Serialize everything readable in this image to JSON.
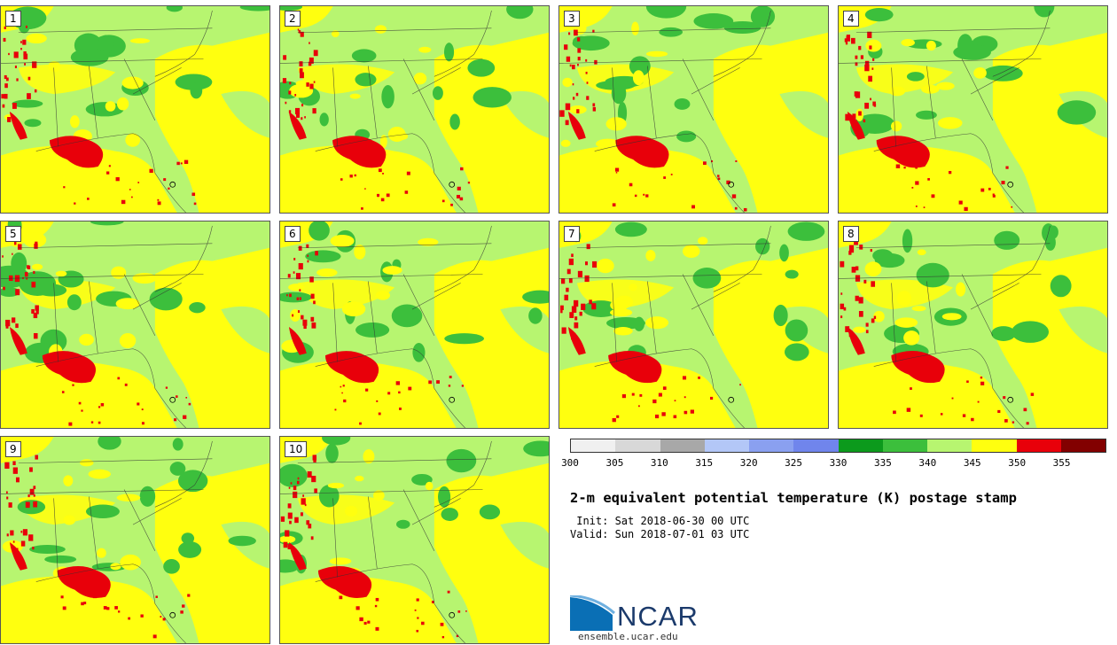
{
  "panels": [
    {
      "label": "1"
    },
    {
      "label": "2"
    },
    {
      "label": "3"
    },
    {
      "label": "4"
    },
    {
      "label": "5"
    },
    {
      "label": "6"
    },
    {
      "label": "7"
    },
    {
      "label": "8"
    },
    {
      "label": "9"
    },
    {
      "label": "10"
    }
  ],
  "colorbar": {
    "colors": [
      "#f0f0f0",
      "#d8d8d8",
      "#a8a8a8",
      "#b3c7f7",
      "#8aa0f0",
      "#7085ec",
      "#0c9a1c",
      "#3cbf3c",
      "#b7f570",
      "#ffff0f",
      "#e8000a",
      "#820000"
    ],
    "ticks": [
      "300",
      "305",
      "310",
      "315",
      "320",
      "325",
      "330",
      "335",
      "340",
      "345",
      "350",
      "355"
    ]
  },
  "title": "2-m equivalent potential temperature (K) postage stamp",
  "init": " Init: Sat 2018-06-30 00 UTC",
  "valid": "Valid: Sun 2018-07-01 03 UTC",
  "logo": {
    "text": "NCAR",
    "url": "ensemble.ucar.edu"
  }
}
